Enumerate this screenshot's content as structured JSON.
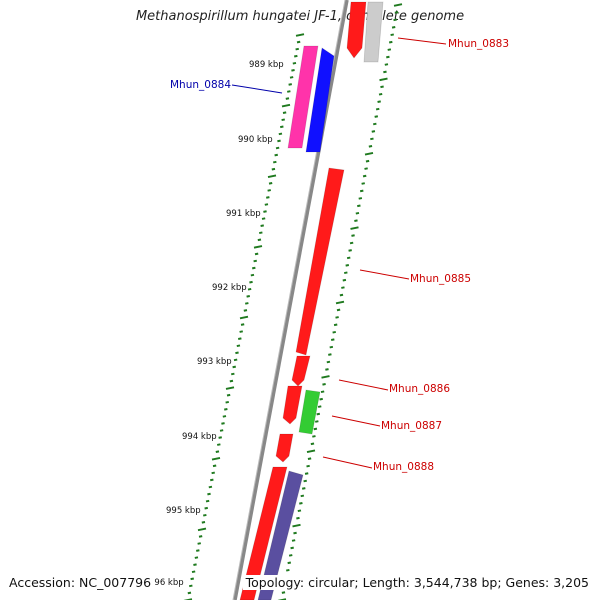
{
  "title": "Methanospirillum hungatei JF-1, complete genome",
  "accession": "Accession: NC_007796",
  "topology": "Topology: circular; Length: 3,544,738 bp; Genes: 3,205",
  "colors": {
    "backbone": "#888888",
    "tick": "#1f7a1f",
    "red": "#ff1a1a",
    "grey": "#cccccc",
    "magenta": "#ff33aa",
    "blue": "#1010ff",
    "green": "#33cc33",
    "slate": "#5a4fa0",
    "label_red": "#cc0000",
    "label_blue": "#0000aa"
  },
  "kbp_labels": [
    "989 kbp",
    "990 kbp",
    "991 kbp",
    "992 kbp",
    "993 kbp",
    "994 kbp",
    "995 kbp",
    "996 kbp"
  ],
  "gene_labels": [
    {
      "text": "Mhun_0883",
      "color": "#cc0000"
    },
    {
      "text": "Mhun_0884",
      "color": "#0000aa"
    },
    {
      "text": "Mhun_0885",
      "color": "#cc0000"
    },
    {
      "text": "Mhun_0886",
      "color": "#cc0000"
    },
    {
      "text": "Mhun_0887",
      "color": "#cc0000"
    },
    {
      "text": "Mhun_0888",
      "color": "#cc0000"
    }
  ]
}
